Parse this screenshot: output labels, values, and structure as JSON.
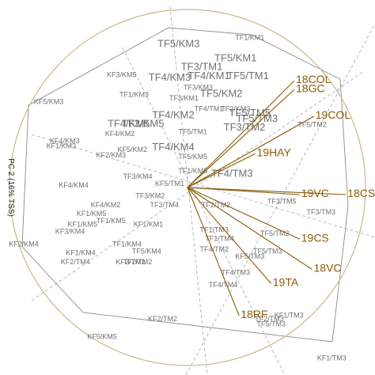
{
  "chart_data": {
    "type": "scatter",
    "title": "",
    "xlabel": "",
    "ylabel": "PC 2 (16% TSS)",
    "xlim": [
      -1.0,
      1.0
    ],
    "ylim": [
      -1.0,
      1.0
    ],
    "grid": false,
    "colors": {
      "circle": "#c8b78e",
      "vectors": "#8a5a0a",
      "hull": "#8c8c8c",
      "guides": "#b0b0b0",
      "site_labels": "#6f6f6f",
      "variable_labels": "#8a5a0a"
    },
    "sites": [
      {
        "label": "TF1/KM1",
        "x": 0.35,
        "y": 0.83,
        "big": false
      },
      {
        "label": "TF5/KM3",
        "x": -0.05,
        "y": 0.79,
        "big": true
      },
      {
        "label": "TF5/KM1",
        "x": 0.27,
        "y": 0.71,
        "big": true
      },
      {
        "label": "TF3/TM1",
        "x": 0.08,
        "y": 0.66,
        "big": true
      },
      {
        "label": "KF3/KM5",
        "x": -0.37,
        "y": 0.62,
        "big": false
      },
      {
        "label": "TF4/KM3",
        "x": -0.1,
        "y": 0.6,
        "big": true
      },
      {
        "label": "TF4/KM1",
        "x": 0.12,
        "y": 0.61,
        "big": true
      },
      {
        "label": "TF5/TM1",
        "x": 0.34,
        "y": 0.61,
        "big": true
      },
      {
        "label": "TF3/KM3",
        "x": 0.06,
        "y": 0.55,
        "big": false
      },
      {
        "label": "TF5/KM2",
        "x": 0.19,
        "y": 0.51,
        "big": true
      },
      {
        "label": "TF1/KM3",
        "x": -0.3,
        "y": 0.51,
        "big": false
      },
      {
        "label": "TF3/KM1",
        "x": -0.02,
        "y": 0.49,
        "big": false
      },
      {
        "label": "KF5/KM3",
        "x": -0.78,
        "y": 0.47,
        "big": false
      },
      {
        "label": "TF4/TM1",
        "x": 0.12,
        "y": 0.43,
        "big": false
      },
      {
        "label": "TF2/KM2",
        "x": 0.27,
        "y": 0.43,
        "big": false
      },
      {
        "label": "TF4/KM2",
        "x": -0.08,
        "y": 0.39,
        "big": true
      },
      {
        "label": "TF5/TM3",
        "x": 0.39,
        "y": 0.37,
        "big": true
      },
      {
        "label": "TF5/TM5",
        "x": 0.35,
        "y": 0.4,
        "big": true
      },
      {
        "label": "TF3/KM5",
        "x": -0.25,
        "y": 0.34,
        "big": true
      },
      {
        "label": "TF4/KM5",
        "x": -0.33,
        "y": 0.34,
        "big": true
      },
      {
        "label": "KF4/KM2",
        "x": -0.38,
        "y": 0.29,
        "big": false
      },
      {
        "label": "TF5/TM1",
        "x": 0.03,
        "y": 0.3,
        "big": false
      },
      {
        "label": "TF3/TM2",
        "x": 0.32,
        "y": 0.32,
        "big": true
      },
      {
        "label": "TF5/TM2",
        "x": 0.7,
        "y": 0.34,
        "big": false
      },
      {
        "label": "KF4/KM3",
        "x": -0.69,
        "y": 0.25,
        "big": false
      },
      {
        "label": "KF1/KM3",
        "x": -0.71,
        "y": 0.22,
        "big": false
      },
      {
        "label": "TF4/KM4",
        "x": -0.08,
        "y": 0.21,
        "big": true
      },
      {
        "label": "KF5/KM2",
        "x": -0.31,
        "y": 0.2,
        "big": false
      },
      {
        "label": "KF2/KM3",
        "x": -0.43,
        "y": 0.17,
        "big": false
      },
      {
        "label": "TF5/KM5",
        "x": 0.03,
        "y": 0.16,
        "big": false
      },
      {
        "label": "TF1/KM5",
        "x": 0.03,
        "y": 0.08,
        "big": false
      },
      {
        "label": "TF3/KM4",
        "x": -0.28,
        "y": 0.05,
        "big": false
      },
      {
        "label": "KF5/TM1",
        "x": -0.1,
        "y": 0.01,
        "big": false
      },
      {
        "label": "TF4/TM3",
        "x": 0.25,
        "y": 0.06,
        "big": true
      },
      {
        "label": "KF4/KM4",
        "x": -0.64,
        "y": 0.0,
        "big": false
      },
      {
        "label": "TF3/KM2",
        "x": -0.21,
        "y": -0.06,
        "big": false
      },
      {
        "label": "TF3/TM4",
        "x": -0.13,
        "y": -0.11,
        "big": false
      },
      {
        "label": "KF4/KM2",
        "x": -0.46,
        "y": -0.11,
        "big": false
      },
      {
        "label": "TF2/TM2",
        "x": 0.16,
        "y": -0.11,
        "big": false
      },
      {
        "label": "TF3/TM5",
        "x": 0.53,
        "y": -0.09,
        "big": false
      },
      {
        "label": "TF3/TM3",
        "x": 0.75,
        "y": -0.15,
        "big": false
      },
      {
        "label": "KF1/KM5",
        "x": -0.54,
        "y": -0.16,
        "big": false
      },
      {
        "label": "KF1/KM5",
        "x": -0.59,
        "y": -0.22,
        "big": false
      },
      {
        "label": "TF1/KM5",
        "x": -0.43,
        "y": -0.2,
        "big": false
      },
      {
        "label": "KF3/KM4",
        "x": -0.66,
        "y": -0.26,
        "big": false
      },
      {
        "label": "KF1/KM1",
        "x": -0.22,
        "y": -0.22,
        "big": false
      },
      {
        "label": "TF1/TM3",
        "x": 0.15,
        "y": -0.25,
        "big": false
      },
      {
        "label": "TF5/TM2",
        "x": 0.49,
        "y": -0.27,
        "big": false
      },
      {
        "label": "KF2/KM4",
        "x": -0.92,
        "y": -0.33,
        "big": false
      },
      {
        "label": "TF1/KM4",
        "x": -0.34,
        "y": -0.33,
        "big": false
      },
      {
        "label": "TF1/TM4",
        "x": 0.18,
        "y": -0.3,
        "big": false
      },
      {
        "label": "TF4/TM2",
        "x": 0.15,
        "y": -0.36,
        "big": false
      },
      {
        "label": "KF1/KM4",
        "x": -0.6,
        "y": -0.38,
        "big": false
      },
      {
        "label": "TF5/KM4",
        "x": -0.23,
        "y": -0.37,
        "big": false
      },
      {
        "label": "KF2/TM2",
        "x": -0.32,
        "y": -0.43,
        "big": false
      },
      {
        "label": "TF5/TM3",
        "x": 0.45,
        "y": -0.37,
        "big": false
      },
      {
        "label": "KF2/TM4",
        "x": -0.63,
        "y": -0.43,
        "big": false
      },
      {
        "label": "TF2/TM2",
        "x": -0.28,
        "y": -0.43,
        "big": false
      },
      {
        "label": "KF5/TM3",
        "x": 0.35,
        "y": -0.4,
        "big": false
      },
      {
        "label": "TF4/TM3",
        "x": 0.27,
        "y": -0.49,
        "big": false
      },
      {
        "label": "TF4/TM4",
        "x": 0.2,
        "y": -0.56,
        "big": false
      },
      {
        "label": "KF2/TM2",
        "x": -0.14,
        "y": -0.75,
        "big": false
      },
      {
        "label": "TF2/TM3",
        "x": 0.46,
        "y": -0.75,
        "big": false
      },
      {
        "label": "KF1/TM3",
        "x": 0.57,
        "y": -0.73,
        "big": false
      },
      {
        "label": "TF5/TM3",
        "x": 0.47,
        "y": -0.78,
        "big": false
      },
      {
        "label": "KF5/KM5",
        "x": -0.48,
        "y": -0.85,
        "big": false
      },
      {
        "label": "KF1/TM3",
        "x": 0.81,
        "y": -0.97,
        "big": false
      }
    ],
    "variables": [
      {
        "label": "18COL",
        "x": 0.6,
        "y": 0.6
      },
      {
        "label": "18GC",
        "x": 0.6,
        "y": 0.55
      },
      {
        "label": "19COL",
        "x": 0.71,
        "y": 0.4
      },
      {
        "label": "19HAY",
        "x": 0.38,
        "y": 0.19
      },
      {
        "label": "19VC",
        "x": 0.63,
        "y": -0.04
      },
      {
        "label": "18CS",
        "x": 0.89,
        "y": -0.04
      },
      {
        "label": "19CS",
        "x": 0.63,
        "y": -0.29
      },
      {
        "label": "18VC",
        "x": 0.7,
        "y": -0.46
      },
      {
        "label": "19TA",
        "x": 0.47,
        "y": -0.54
      },
      {
        "label": "18RF",
        "x": 0.29,
        "y": -0.72
      }
    ]
  }
}
